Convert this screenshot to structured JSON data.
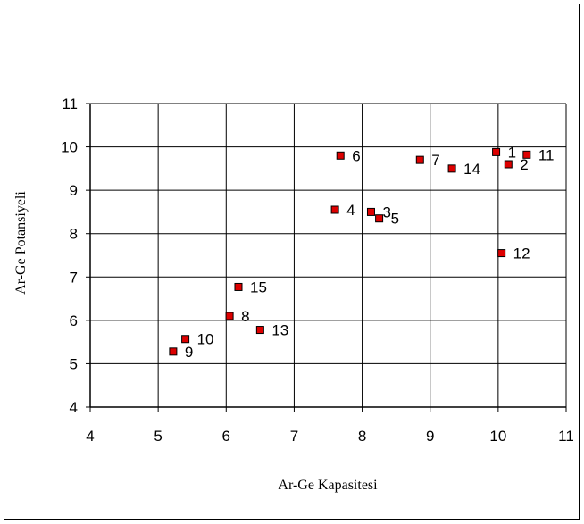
{
  "chart_data": {
    "type": "scatter",
    "title": "",
    "xlabel": "Ar-Ge Kapasitesi",
    "ylabel": "Ar-Ge Potansiyeli",
    "xlim": [
      4,
      11
    ],
    "ylim": [
      4,
      11
    ],
    "xticks": [
      "4",
      "5",
      "6",
      "7",
      "8",
      "9",
      "10",
      "11"
    ],
    "yticks": [
      "4",
      "5",
      "6",
      "7",
      "8",
      "9",
      "10",
      "11"
    ],
    "grid": true,
    "legend": "none",
    "marker_color": "#dd0000",
    "points": [
      {
        "label": "1",
        "x": 9.97,
        "y": 9.88
      },
      {
        "label": "2",
        "x": 10.15,
        "y": 9.6
      },
      {
        "label": "3",
        "x": 8.13,
        "y": 8.5
      },
      {
        "label": "4",
        "x": 7.6,
        "y": 8.55
      },
      {
        "label": "5",
        "x": 8.25,
        "y": 8.35
      },
      {
        "label": "6",
        "x": 7.68,
        "y": 9.8
      },
      {
        "label": "7",
        "x": 8.85,
        "y": 9.7
      },
      {
        "label": "8",
        "x": 6.05,
        "y": 6.1
      },
      {
        "label": "9",
        "x": 5.22,
        "y": 5.28
      },
      {
        "label": "10",
        "x": 5.4,
        "y": 5.57
      },
      {
        "label": "11",
        "x": 10.42,
        "y": 9.82
      },
      {
        "label": "12",
        "x": 10.05,
        "y": 7.55
      },
      {
        "label": "13",
        "x": 6.5,
        "y": 5.78
      },
      {
        "label": "14",
        "x": 9.32,
        "y": 9.5
      },
      {
        "label": "15",
        "x": 6.18,
        "y": 6.77
      }
    ]
  }
}
